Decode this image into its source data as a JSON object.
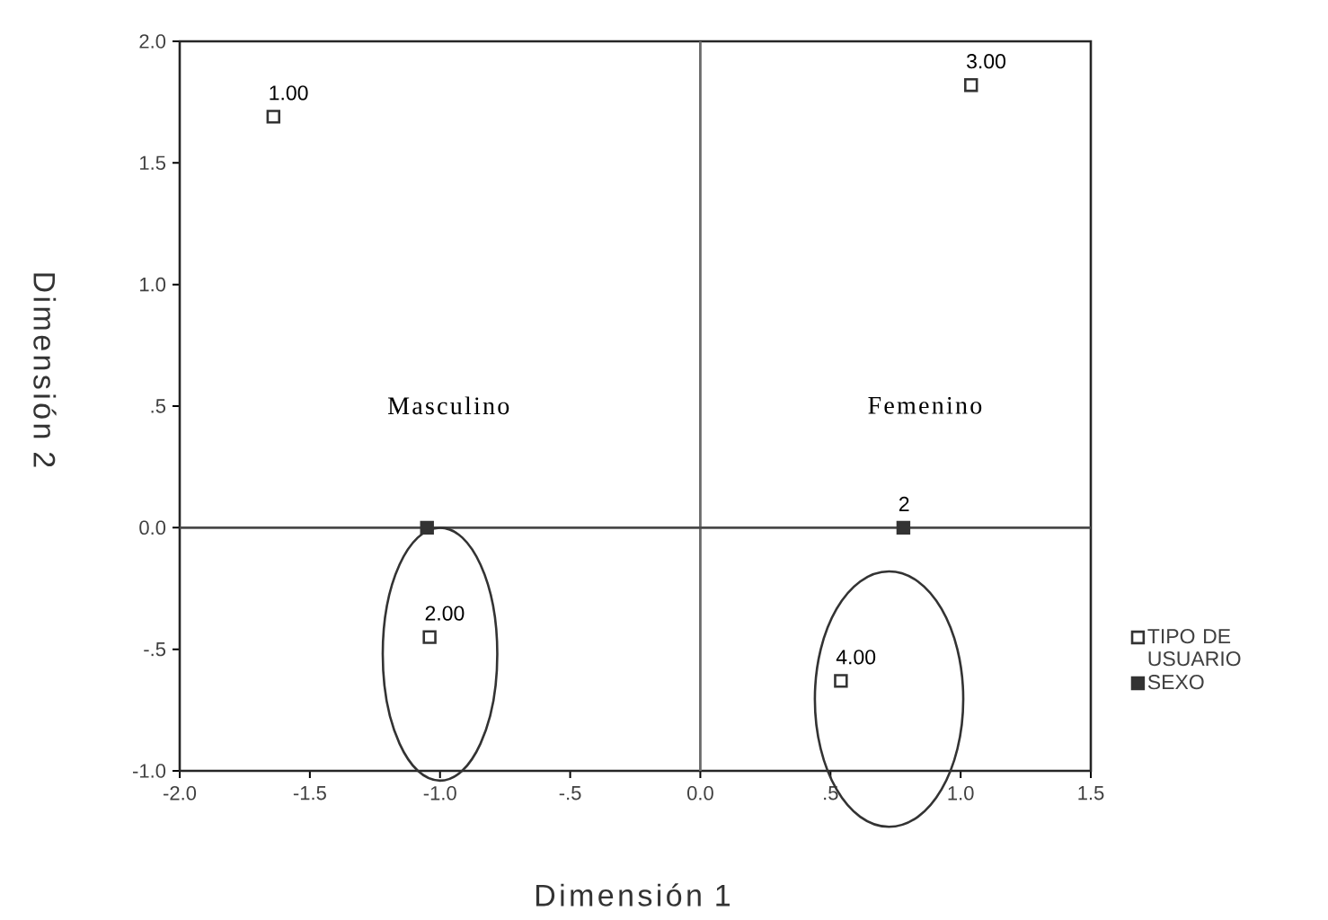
{
  "chart_data": {
    "type": "scatter",
    "xlabel": "Dimensión 1",
    "ylabel": "Dimensión 2",
    "xlim": [
      -2,
      1.5
    ],
    "ylim": [
      -1,
      2
    ],
    "xticks": [
      {
        "value": -2,
        "label": "-2.0"
      },
      {
        "value": -1.5,
        "label": "-1.5"
      },
      {
        "value": -1,
        "label": "-1.0"
      },
      {
        "value": -0.5,
        "label": "-.5"
      },
      {
        "value": 0,
        "label": "0.0"
      },
      {
        "value": 0.5,
        "label": ".5"
      },
      {
        "value": 1,
        "label": "1.0"
      },
      {
        "value": 1.5,
        "label": "1.5"
      }
    ],
    "yticks": [
      {
        "value": -1,
        "label": "-1.0"
      },
      {
        "value": -0.5,
        "label": "-.5"
      },
      {
        "value": 0,
        "label": "0.0"
      },
      {
        "value": 0.5,
        "label": ".5"
      },
      {
        "value": 1,
        "label": "1.0"
      },
      {
        "value": 1.5,
        "label": "1.5"
      },
      {
        "value": 2,
        "label": "2.0"
      }
    ],
    "series": [
      {
        "name": "TIPO DE USUARIO",
        "color": "#333333",
        "x": [
          -1.64,
          -1.04,
          1.04,
          0.54
        ],
        "values": [
          1.69,
          -0.45,
          1.82,
          -0.63
        ]
      },
      {
        "name": "SEXO",
        "color": "#333333",
        "x": [
          -1.05,
          0.78
        ],
        "values": [
          0,
          0
        ]
      }
    ],
    "annotations": [
      {
        "text": "1.00",
        "x": -1.64,
        "y": 1.69
      },
      {
        "text": "2.00",
        "x": -1.04,
        "y": -0.45
      },
      {
        "text": "3.00",
        "x": 1.04,
        "y": 1.82
      },
      {
        "text": "4.00",
        "x": 0.54,
        "y": -0.63
      },
      {
        "text": "2",
        "x": 0.78,
        "y": 0
      },
      "Masculino",
      "Femenino"
    ],
    "ref_lines": [
      {
        "axis": "x",
        "value": 0,
        "color": "#6b6b6b"
      },
      {
        "axis": "y",
        "value": 0,
        "color": "#4a4a4a"
      }
    ],
    "legend": "right",
    "marker": "square"
  }
}
